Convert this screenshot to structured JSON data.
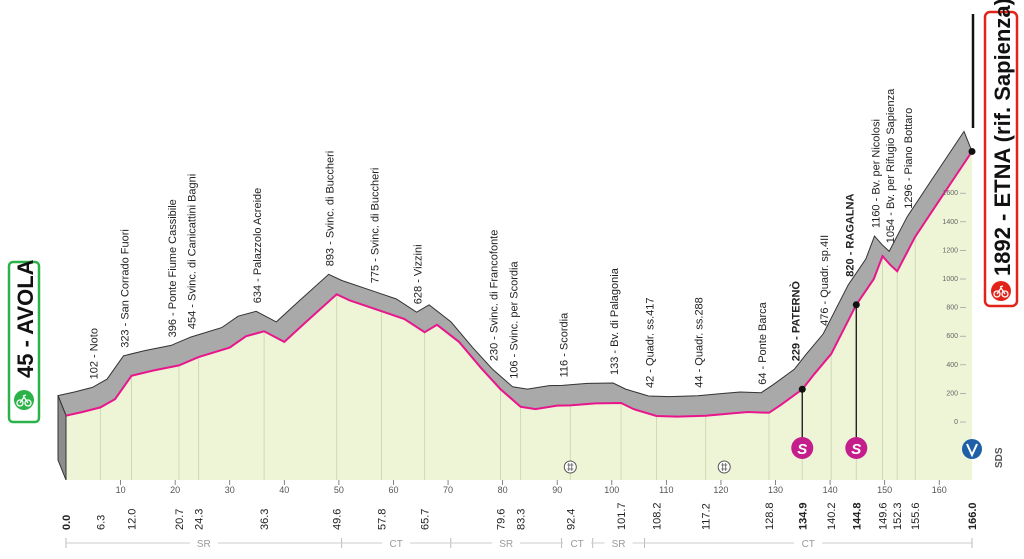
{
  "start": {
    "label": "45 - AVOLA",
    "color": "#2bb34a"
  },
  "finish": {
    "label": "1892 - ETNA (rif. Sapienza)",
    "color": "#e2231a"
  },
  "profile": {
    "points": [
      [
        0,
        45
      ],
      [
        3,
        70
      ],
      [
        6.3,
        102
      ],
      [
        9,
        160
      ],
      [
        12,
        323
      ],
      [
        16,
        360
      ],
      [
        20.7,
        396
      ],
      [
        24.3,
        454
      ],
      [
        30,
        520
      ],
      [
        33,
        600
      ],
      [
        36.3,
        634
      ],
      [
        40,
        560
      ],
      [
        44,
        700
      ],
      [
        49.6,
        893
      ],
      [
        52,
        850
      ],
      [
        57.8,
        775
      ],
      [
        62,
        720
      ],
      [
        65.7,
        628
      ],
      [
        68,
        680
      ],
      [
        72,
        560
      ],
      [
        76,
        380
      ],
      [
        79.6,
        230
      ],
      [
        83.3,
        106
      ],
      [
        86,
        90
      ],
      [
        90,
        115
      ],
      [
        92.4,
        116
      ],
      [
        97,
        130
      ],
      [
        101.7,
        133
      ],
      [
        104,
        90
      ],
      [
        108.2,
        42
      ],
      [
        112,
        38
      ],
      [
        117.2,
        44
      ],
      [
        122,
        60
      ],
      [
        125,
        70
      ],
      [
        128.8,
        64
      ],
      [
        131,
        120
      ],
      [
        134.9,
        229
      ],
      [
        137,
        330
      ],
      [
        140.2,
        476
      ],
      [
        144.8,
        820
      ],
      [
        148,
        1000
      ],
      [
        149.6,
        1160
      ],
      [
        151,
        1100
      ],
      [
        152.3,
        1054
      ],
      [
        155.6,
        1296
      ],
      [
        160,
        1550
      ],
      [
        163,
        1720
      ],
      [
        166,
        1892
      ]
    ],
    "fill_color": "#eef5d6",
    "road_color": "#a9a9a9",
    "line_color": "#e8168d"
  },
  "waypoints": [
    {
      "km": 6.3,
      "label": "102 - Noto",
      "bold": false
    },
    {
      "km": 12.0,
      "label": "323 - San Corrado Fuori",
      "bold": false
    },
    {
      "km": 20.7,
      "label": "396 - Ponte Fiume Cassibile",
      "bold": false
    },
    {
      "km": 24.3,
      "label": "454 - Svinc. di Canicattini Bagni",
      "bold": false
    },
    {
      "km": 36.3,
      "label": "634 - Palazzolo Acreide",
      "bold": false
    },
    {
      "km": 49.6,
      "label": "893 - Svinc. di Buccheri",
      "bold": false
    },
    {
      "km": 57.8,
      "label": "775 - Svinc. di Buccheri",
      "bold": false
    },
    {
      "km": 65.7,
      "label": "628 - Vizzini",
      "bold": false
    },
    {
      "km": 79.6,
      "label": "230 - Svinc. di Francofonte",
      "bold": false
    },
    {
      "km": 83.3,
      "label": "106 - Svinc. per Scordia",
      "bold": false
    },
    {
      "km": 92.4,
      "label": "116 - Scordia",
      "bold": false
    },
    {
      "km": 101.7,
      "label": "133 - Bv. di Palagonia",
      "bold": false
    },
    {
      "km": 108.2,
      "label": "42 - Quadr. ss.417",
      "bold": false
    },
    {
      "km": 117.2,
      "label": "44 - Quadr. ss.288",
      "bold": false
    },
    {
      "km": 128.8,
      "label": "64 - Ponte Barca",
      "bold": false
    },
    {
      "km": 134.9,
      "label": "229 - PATERNÒ",
      "bold": true
    },
    {
      "km": 140.2,
      "label": "476 - Quadr. sp.4II",
      "bold": false
    },
    {
      "km": 144.8,
      "label": "820 - RAGALNA",
      "bold": true
    },
    {
      "km": 149.6,
      "label": "1160 - Bv. per Nicolosi",
      "bold": false
    },
    {
      "km": 152.3,
      "label": "1054 - Bv. per Rifugio Sapienza",
      "bold": false
    },
    {
      "km": 155.6,
      "label": "1296 - Piano Bottaro",
      "bold": false
    }
  ],
  "km_labels": [
    "0.0",
    "6.3",
    "12.0",
    "20.7",
    "24.3",
    "36.3",
    "49.6",
    "57.8",
    "65.7",
    "79.6",
    "83.3",
    "92.4",
    "101.7",
    "108.2",
    "117.2",
    "128.8",
    "134.9",
    "140.2",
    "144.8",
    "149.6",
    "152.3",
    "155.6",
    "166.0"
  ],
  "km_ticks": [
    "10",
    "20",
    "30",
    "40",
    "50",
    "60",
    "70",
    "80",
    "90",
    "100",
    "110",
    "120",
    "130",
    "140",
    "150",
    "160"
  ],
  "alt_ticks": [
    "0",
    "200",
    "400",
    "600",
    "800",
    "1000",
    "1200",
    "1400",
    "1600"
  ],
  "regions": [
    "SR",
    "CT",
    "SR",
    "CT",
    "SR",
    "CT"
  ],
  "markers": {
    "sprint_1": {
      "km": 134.9,
      "letter": "S"
    },
    "sprint_2": {
      "km": 144.8,
      "letter": "S"
    },
    "finish_logo": "SDS",
    "start_icon": "cyclist-icon",
    "finish_icon": "cyclist-icon",
    "feed_icon": "bidon-icon",
    "sprint_color": "#c41e8c"
  }
}
